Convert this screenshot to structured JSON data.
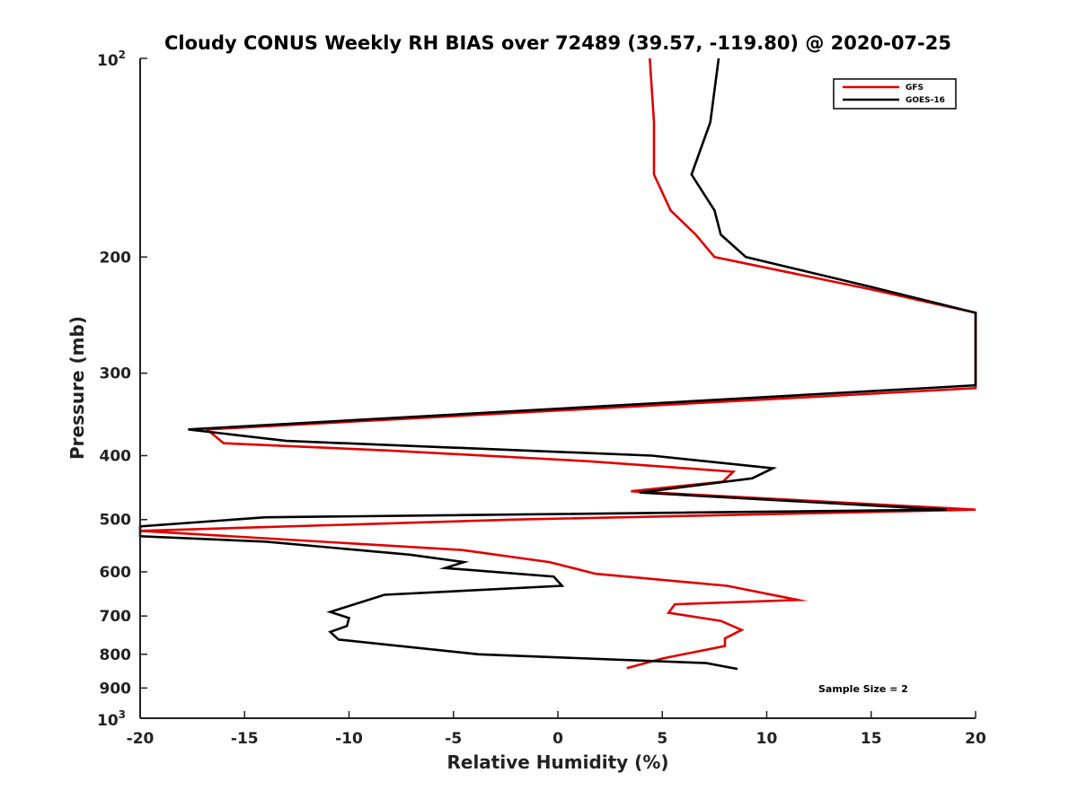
{
  "chart_data": {
    "type": "line",
    "title": "Cloudy CONUS Weekly RH BIAS over 72489 (39.57, -119.80) @ 2020-07-25",
    "xlabel": "Relative Humidity (%)",
    "ylabel": "Pressure (mb)",
    "xlim": [
      -20,
      20
    ],
    "ylim": [
      100,
      1000
    ],
    "yscale": "log",
    "y_reversed": true,
    "grid": false,
    "legend_position": "top-right",
    "x_ticks": [
      "-20",
      "-15",
      "-10",
      "-5",
      "0",
      "5",
      "10",
      "15",
      "20"
    ],
    "x_tick_values": [
      -20,
      -15,
      -10,
      -5,
      0,
      5,
      10,
      15,
      20
    ],
    "y_ticks": [
      {
        "value": 100,
        "base": "10",
        "exp": "2"
      },
      {
        "value": 200,
        "label": "200"
      },
      {
        "value": 300,
        "label": "300"
      },
      {
        "value": 400,
        "label": "400"
      },
      {
        "value": 500,
        "label": "500"
      },
      {
        "value": 600,
        "label": "600"
      },
      {
        "value": 700,
        "label": "700"
      },
      {
        "value": 800,
        "label": "800"
      },
      {
        "value": 900,
        "label": "900"
      },
      {
        "value": 1000,
        "base": "10",
        "exp": "3"
      }
    ],
    "annotation": "Sample Size = 2",
    "series": [
      {
        "name": "GFS",
        "color": "#e00000",
        "points": [
          [
            4.4,
            100
          ],
          [
            4.6,
            125
          ],
          [
            4.6,
            150
          ],
          [
            5.4,
            170
          ],
          [
            6.6,
            185
          ],
          [
            7.5,
            200
          ],
          [
            15.0,
            224
          ],
          [
            20.0,
            243
          ],
          [
            20.0,
            316
          ],
          [
            -16.8,
            365
          ],
          [
            -16.0,
            383
          ],
          [
            -8.0,
            393
          ],
          [
            1.5,
            408
          ],
          [
            8.4,
            423
          ],
          [
            7.9,
            438
          ],
          [
            3.5,
            453
          ],
          [
            20.0,
            483
          ],
          [
            -2.0,
            500
          ],
          [
            -20.0,
            520
          ],
          [
            -4.6,
            556
          ],
          [
            -0.4,
            580
          ],
          [
            1.8,
            604
          ],
          [
            8.1,
            630
          ],
          [
            11.5,
            662
          ],
          [
            5.6,
            672
          ],
          [
            5.3,
            692
          ],
          [
            7.8,
            712
          ],
          [
            8.8,
            735
          ],
          [
            8.0,
            757
          ],
          [
            8.0,
            777
          ],
          [
            5.0,
            812
          ],
          [
            3.3,
            840
          ]
        ]
      },
      {
        "name": "GOES-16",
        "color": "#000000",
        "points": [
          [
            7.7,
            100
          ],
          [
            7.3,
            125
          ],
          [
            6.4,
            150
          ],
          [
            7.5,
            170
          ],
          [
            7.8,
            185
          ],
          [
            9.0,
            200
          ],
          [
            15.0,
            222
          ],
          [
            20.0,
            243
          ],
          [
            20.0,
            313
          ],
          [
            -17.7,
            365
          ],
          [
            -13.0,
            380
          ],
          [
            4.5,
            400
          ],
          [
            10.3,
            418
          ],
          [
            9.3,
            433
          ],
          [
            3.9,
            455
          ],
          [
            18.6,
            483
          ],
          [
            -14.0,
            496
          ],
          [
            -20.0,
            512
          ],
          [
            -20.0,
            530
          ],
          [
            -14.0,
            540
          ],
          [
            -7.1,
            565
          ],
          [
            -4.5,
            580
          ],
          [
            -5.4,
            592
          ],
          [
            -0.2,
            610
          ],
          [
            0.2,
            630
          ],
          [
            -8.3,
            650
          ],
          [
            -10.9,
            690
          ],
          [
            -10.0,
            705
          ],
          [
            -10.1,
            725
          ],
          [
            -10.9,
            740
          ],
          [
            -10.5,
            760
          ],
          [
            -3.8,
            800
          ],
          [
            7.1,
            825
          ],
          [
            8.6,
            842
          ]
        ]
      }
    ]
  }
}
